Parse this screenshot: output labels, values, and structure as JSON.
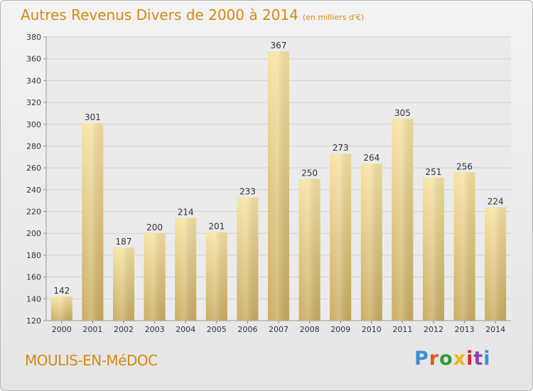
{
  "header": {
    "title": "Autres Revenus Divers de 2000 à 2014",
    "unit": "(en milliers d'€)"
  },
  "footer": {
    "commune": "MOULIS-EN-MéDOC",
    "logo_text": "Proxiti",
    "logo_colors": [
      "#3a8fd6",
      "#e8531e",
      "#2e9a3e",
      "#f2b31c",
      "#d8262e",
      "#8a3fb0",
      "#3a8fd6"
    ]
  },
  "colors": {
    "title": "#d6880f",
    "bar_top": "#f7e3a3",
    "bar_bottom": "#c9ad62"
  },
  "chart_data": {
    "type": "bar",
    "title": "Autres Revenus Divers de 2000 à 2014",
    "subtitle": "(en milliers d'€)",
    "categories": [
      "2000",
      "2001",
      "2002",
      "2003",
      "2004",
      "2005",
      "2006",
      "2007",
      "2008",
      "2009",
      "2010",
      "2011",
      "2012",
      "2013",
      "2014"
    ],
    "values": [
      142,
      301,
      187,
      200,
      214,
      201,
      233,
      367,
      250,
      273,
      264,
      305,
      251,
      256,
      224
    ],
    "ylim": [
      120,
      380
    ],
    "yticks": [
      120,
      140,
      160,
      180,
      200,
      220,
      240,
      260,
      280,
      300,
      320,
      340,
      360,
      380
    ],
    "grid": true,
    "legend": "none"
  }
}
